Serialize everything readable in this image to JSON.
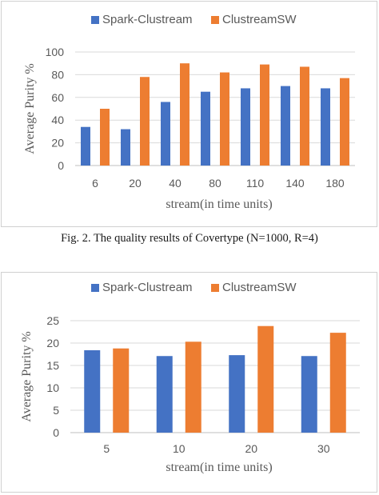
{
  "caption": "Fig. 2. The quality results of Covertype (N=1000, R=4)",
  "chart_data": [
    {
      "type": "bar",
      "xlabel": "stream(in time units)",
      "ylabel": "Average Purity %",
      "ylim": [
        0,
        100
      ],
      "yticks": [
        0,
        20,
        40,
        60,
        80,
        100
      ],
      "grid": true,
      "legend_position": "top",
      "categories": [
        "6",
        "20",
        "40",
        "80",
        "110",
        "140",
        "180"
      ],
      "series": [
        {
          "name": "Spark-Clustream",
          "color": "#4472c4",
          "values": [
            34,
            32,
            56,
            65,
            68,
            70,
            68
          ]
        },
        {
          "name": "ClustreamSW",
          "color": "#ed7d31",
          "values": [
            50,
            78,
            90,
            82,
            89,
            87,
            77
          ]
        }
      ]
    },
    {
      "type": "bar",
      "xlabel": "stream(in time units)",
      "ylabel": "Average Purity %",
      "ylim": [
        0,
        25
      ],
      "yticks": [
        0,
        5,
        10,
        15,
        20,
        25
      ],
      "grid": true,
      "legend_position": "top",
      "categories": [
        "5",
        "10",
        "20",
        "30"
      ],
      "series": [
        {
          "name": "Spark-Clustream",
          "color": "#4472c4",
          "values": [
            18.4,
            17.1,
            17.3,
            17.1
          ]
        },
        {
          "name": "ClustreamSW",
          "color": "#ed7d31",
          "values": [
            18.8,
            20.3,
            23.8,
            22.3
          ]
        }
      ]
    }
  ]
}
